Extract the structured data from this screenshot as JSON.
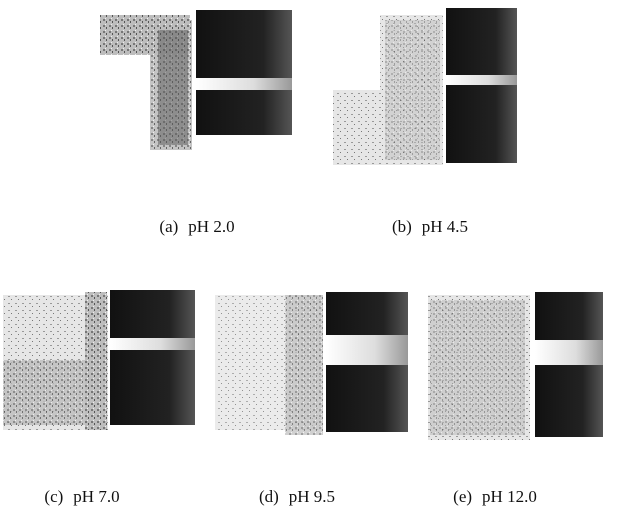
{
  "panels": [
    {
      "label": "(a)",
      "caption": "pH 2.0"
    },
    {
      "label": "(b)",
      "caption": "pH 4.5"
    },
    {
      "label": "(c)",
      "caption": "pH 7.0"
    },
    {
      "label": "(d)",
      "caption": "pH 9.5"
    },
    {
      "label": "(e)",
      "caption": "pH 12.0"
    }
  ]
}
